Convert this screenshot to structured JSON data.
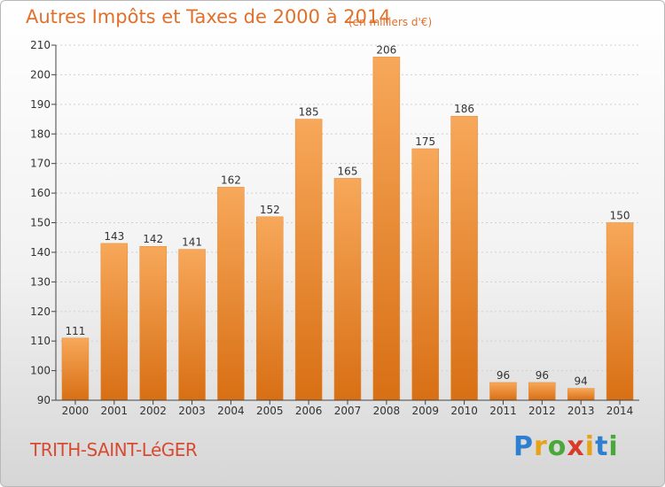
{
  "header": {
    "title": "Autres Impôts et Taxes de 2000 à 2014",
    "subtitle": "(en milliers d'€)"
  },
  "footer": {
    "city": "TRITH-SAINT-LéGER",
    "logo_letters": [
      "P",
      "r",
      "o",
      "x",
      "i",
      "t",
      "i"
    ],
    "logo_colors": [
      "#2f7fd1",
      "#e8a21a",
      "#4aa83a",
      "#d93b2b",
      "#e8a21a",
      "#2f7fd1",
      "#4aa83a"
    ]
  },
  "colors": {
    "bar_light": "#f7a85a",
    "bar_dark": "#d86f14",
    "axis": "#444444",
    "grid": "#d0d0d0",
    "text": "#333333"
  },
  "chart_data": {
    "type": "bar",
    "title": "Autres Impôts et Taxes de 2000 à 2014",
    "subtitle": "(en milliers d'€)",
    "categories": [
      "2000",
      "2001",
      "2002",
      "2003",
      "2004",
      "2005",
      "2006",
      "2007",
      "2008",
      "2009",
      "2010",
      "2011",
      "2012",
      "2013",
      "2014"
    ],
    "values": [
      111,
      143,
      142,
      141,
      162,
      152,
      185,
      165,
      206,
      175,
      186,
      96,
      96,
      94,
      150
    ],
    "ylim": [
      90,
      210
    ],
    "yticks": [
      90,
      100,
      110,
      120,
      130,
      140,
      150,
      160,
      170,
      180,
      190,
      200,
      210
    ],
    "xlabel": "",
    "ylabel": "",
    "grid": true,
    "data_labels": true
  }
}
